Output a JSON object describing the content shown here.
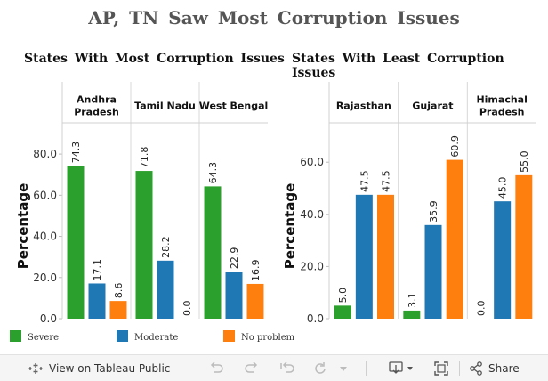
{
  "title": "AP, TN Saw Most Corruption Issues",
  "colors": {
    "Severe": "#2ca02c",
    "Moderate": "#1f77b4",
    "No problem": "#ff7f0e"
  },
  "chart_data": [
    {
      "type": "bar",
      "title": "States With Most Corruption Issues",
      "ylabel": "Percentage",
      "ylim": [
        0,
        90
      ],
      "yticks": [
        "0.0",
        "20.0",
        "40.0",
        "60.0",
        "80.0"
      ],
      "categories": [
        "Andhra Pradesh",
        "Tamil Nadu",
        "West Bengal"
      ],
      "series": [
        {
          "name": "Severe",
          "values": [
            74.3,
            71.8,
            64.3
          ]
        },
        {
          "name": "Moderate",
          "values": [
            17.1,
            28.2,
            22.9
          ]
        },
        {
          "name": "No problem",
          "values": [
            8.6,
            0.0,
            16.9
          ]
        }
      ]
    },
    {
      "type": "bar",
      "title": "States With Least Corruption Issues",
      "ylabel": "Percentage",
      "ylim": [
        0,
        71
      ],
      "yticks": [
        "0.0",
        "20.0",
        "40.0",
        "60.0"
      ],
      "categories": [
        "Rajasthan",
        "Gujarat",
        "Himachal Pradesh"
      ],
      "series": [
        {
          "name": "Severe",
          "values": [
            5.0,
            3.1,
            0.0
          ]
        },
        {
          "name": "Moderate",
          "values": [
            47.5,
            35.9,
            45.0
          ]
        },
        {
          "name": "No problem",
          "values": [
            47.5,
            60.9,
            55.0
          ]
        }
      ]
    }
  ],
  "legend": [
    "Severe",
    "Moderate",
    "No problem"
  ],
  "toolbar": {
    "view_label": "View on Tableau Public",
    "share_label": "Share"
  }
}
